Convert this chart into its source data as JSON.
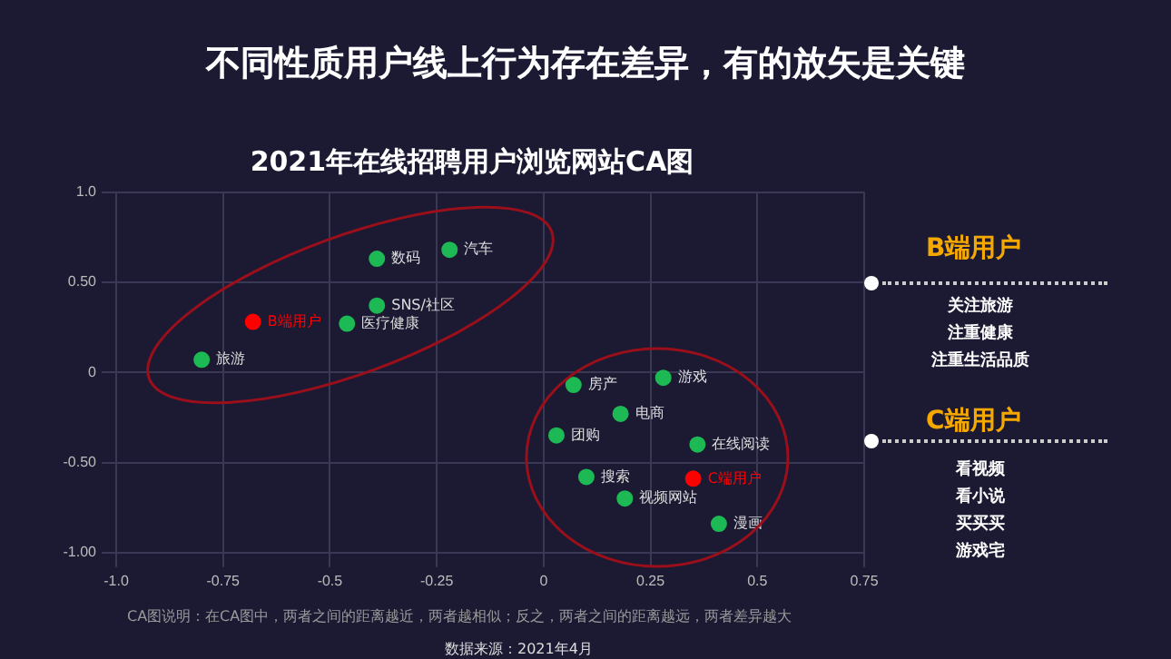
{
  "chart_data": {
    "type": "scatter",
    "title": "不同性质用户线上行为存在差异，有的放矢是关键",
    "subtitle": "2021年在线招聘用户浏览网站CA图",
    "xlim": [
      -1.0,
      0.75
    ],
    "xticks": [
      {
        "value": -1.0,
        "label": "-1.0"
      },
      -0.75,
      -0.5,
      -0.25,
      0,
      0.25,
      0.5,
      0.75
    ],
    "ylim": [
      -1.0,
      1.0
    ],
    "yticks": [
      {
        "value": -1.0,
        "label": "-1.00"
      },
      {
        "value": -0.5,
        "label": "-0.50"
      },
      0,
      {
        "value": 0.5,
        "label": "0.50"
      },
      {
        "value": 1.0,
        "label": "1.0"
      }
    ],
    "grid": true,
    "legend": false,
    "marker": "circle",
    "series": [
      {
        "name": "旅游",
        "color": "#1db954",
        "x": [
          -0.8
        ],
        "values": [
          0.07
        ]
      },
      {
        "name": "B端用户",
        "color": "#ff0000",
        "x": [
          -0.68
        ],
        "values": [
          0.28
        ]
      },
      {
        "name": "医疗健康",
        "color": "#1db954",
        "x": [
          -0.46
        ],
        "values": [
          0.27
        ]
      },
      {
        "name": "SNS/社区",
        "color": "#1db954",
        "x": [
          -0.39
        ],
        "values": [
          0.37
        ]
      },
      {
        "name": "数码",
        "color": "#1db954",
        "x": [
          -0.39
        ],
        "values": [
          0.63
        ]
      },
      {
        "name": "汽车",
        "color": "#1db954",
        "x": [
          -0.22
        ],
        "values": [
          0.68
        ]
      },
      {
        "name": "房产",
        "color": "#1db954",
        "x": [
          0.07
        ],
        "values": [
          -0.07
        ]
      },
      {
        "name": "游戏",
        "color": "#1db954",
        "x": [
          0.28
        ],
        "values": [
          -0.03
        ]
      },
      {
        "name": "电商",
        "color": "#1db954",
        "x": [
          0.18
        ],
        "values": [
          -0.23
        ]
      },
      {
        "name": "团购",
        "color": "#1db954",
        "x": [
          0.03
        ],
        "values": [
          -0.35
        ]
      },
      {
        "name": "在线阅读",
        "color": "#1db954",
        "x": [
          0.36
        ],
        "values": [
          -0.4
        ]
      },
      {
        "name": "搜索",
        "color": "#1db954",
        "x": [
          0.1
        ],
        "values": [
          -0.58
        ]
      },
      {
        "name": "C端用户",
        "color": "#ff0000",
        "x": [
          0.35
        ],
        "values": [
          -0.59
        ]
      },
      {
        "name": "视频网站",
        "color": "#1db954",
        "x": [
          0.19
        ],
        "values": [
          -0.7
        ]
      },
      {
        "name": "漫画",
        "color": "#1db954",
        "x": [
          0.41
        ],
        "values": [
          -0.84
        ]
      }
    ],
    "annotations": [
      "CA图说明：在CA图中，两者之间的距离越近，两者越相似；反之，两者之间的距离越远，两者差异越大",
      "数据来源：2021年4月",
      "B端用户",
      "关注旅游",
      "注重健康",
      "注重生活品质",
      "C端用户",
      "看视频",
      "看小说",
      "买买买",
      "游戏宅"
    ]
  }
}
